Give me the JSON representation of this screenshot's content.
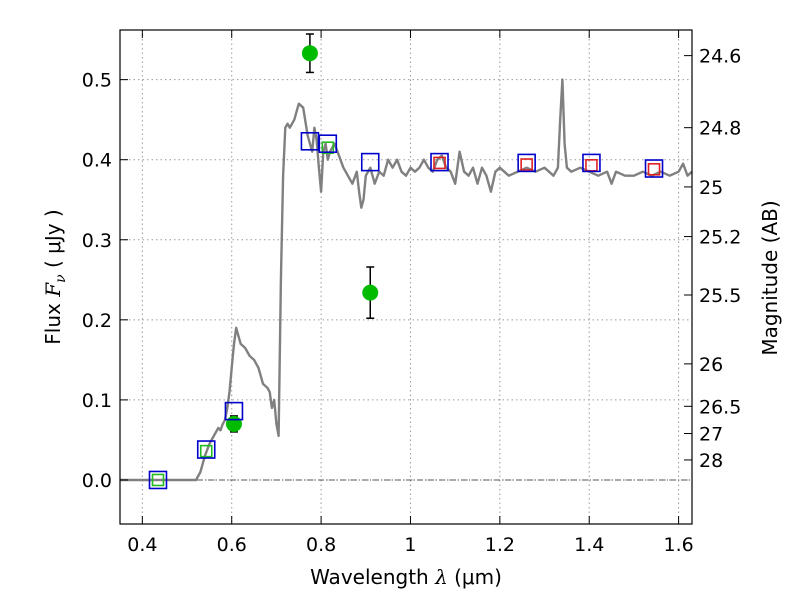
{
  "chart_data": {
    "type": "line",
    "xlabel": "Wavelength  λ (μm)",
    "ylabel": "Flux  F_ν  ( μJy )",
    "ylabel_parts": {
      "prefix": "Flux  ",
      "symbol": "F",
      "subscript": "ν",
      "suffix": "  ( μJy )"
    },
    "xlabel_parts": {
      "prefix": "Wavelength  ",
      "symbol": "λ",
      "suffix": " (μm)"
    },
    "ylabel_right": "Magnitude (AB)",
    "xlim": [
      0.35,
      1.63
    ],
    "ylim": [
      -0.055,
      0.562
    ],
    "grid": true,
    "x_ticks": [
      0.4,
      0.6,
      0.8,
      1.0,
      1.2,
      1.4,
      1.6
    ],
    "x_tick_labels": [
      "0.4",
      "0.6",
      "0.8",
      "1",
      "1.2",
      "1.4",
      "1.6"
    ],
    "y_ticks": [
      0.0,
      0.1,
      0.2,
      0.3,
      0.4,
      0.5
    ],
    "y_tick_labels": [
      "0.0",
      "0.1",
      "0.2",
      "0.3",
      "0.4",
      "0.5"
    ],
    "mag_ticks": [
      {
        "label": "24.6",
        "flux": 0.53
      },
      {
        "label": "24.8",
        "flux": 0.44
      },
      {
        "label": "25",
        "flux": 0.366
      },
      {
        "label": "25.2",
        "flux": 0.304
      },
      {
        "label": "25.5",
        "flux": 0.231
      },
      {
        "label": "26",
        "flux": 0.145
      },
      {
        "label": "26.5",
        "flux": 0.092
      },
      {
        "label": "27",
        "flux": 0.058
      },
      {
        "label": "28",
        "flux": 0.025
      }
    ],
    "zero_line": 0.0,
    "colors": {
      "spectrum": "#808080",
      "detections": "#00bb00",
      "errorbars": "#000000",
      "model_blue": "#0000cc",
      "model_green": "#22bb22",
      "model_red": "#dd2222",
      "grid": "#9a9a9a"
    },
    "series": [
      {
        "name": "template spectrum",
        "style": "line",
        "x": [
          0.35,
          0.4,
          0.45,
          0.5,
          0.52,
          0.53,
          0.54,
          0.55,
          0.56,
          0.565,
          0.57,
          0.575,
          0.58,
          0.585,
          0.59,
          0.595,
          0.6,
          0.605,
          0.61,
          0.615,
          0.62,
          0.63,
          0.64,
          0.65,
          0.66,
          0.67,
          0.68,
          0.685,
          0.69,
          0.695,
          0.7,
          0.705,
          0.71,
          0.715,
          0.72,
          0.725,
          0.73,
          0.74,
          0.75,
          0.76,
          0.77,
          0.78,
          0.785,
          0.79,
          0.795,
          0.8,
          0.805,
          0.81,
          0.815,
          0.82,
          0.83,
          0.84,
          0.85,
          0.86,
          0.87,
          0.88,
          0.885,
          0.89,
          0.895,
          0.9,
          0.91,
          0.92,
          0.93,
          0.94,
          0.95,
          0.96,
          0.97,
          0.98,
          0.99,
          1.0,
          1.01,
          1.02,
          1.03,
          1.04,
          1.05,
          1.06,
          1.07,
          1.08,
          1.09,
          1.1,
          1.11,
          1.12,
          1.13,
          1.14,
          1.15,
          1.16,
          1.17,
          1.18,
          1.19,
          1.2,
          1.22,
          1.24,
          1.26,
          1.28,
          1.3,
          1.32,
          1.33,
          1.335,
          1.34,
          1.345,
          1.35,
          1.36,
          1.38,
          1.4,
          1.42,
          1.44,
          1.45,
          1.46,
          1.48,
          1.5,
          1.52,
          1.54,
          1.56,
          1.58,
          1.6,
          1.61,
          1.62,
          1.63
        ],
        "y": [
          0.0,
          0.0,
          0.0,
          0.0,
          0.0,
          0.01,
          0.03,
          0.045,
          0.055,
          0.06,
          0.065,
          0.062,
          0.07,
          0.075,
          0.09,
          0.11,
          0.14,
          0.17,
          0.19,
          0.18,
          0.17,
          0.165,
          0.155,
          0.15,
          0.14,
          0.12,
          0.115,
          0.11,
          0.09,
          0.1,
          0.07,
          0.055,
          0.25,
          0.38,
          0.44,
          0.445,
          0.44,
          0.45,
          0.47,
          0.465,
          0.43,
          0.41,
          0.44,
          0.425,
          0.39,
          0.36,
          0.41,
          0.42,
          0.4,
          0.41,
          0.42,
          0.405,
          0.39,
          0.38,
          0.37,
          0.385,
          0.36,
          0.34,
          0.35,
          0.38,
          0.39,
          0.37,
          0.385,
          0.38,
          0.4,
          0.39,
          0.4,
          0.385,
          0.38,
          0.39,
          0.385,
          0.39,
          0.4,
          0.39,
          0.385,
          0.4,
          0.405,
          0.39,
          0.385,
          0.37,
          0.41,
          0.385,
          0.38,
          0.39,
          0.37,
          0.39,
          0.38,
          0.36,
          0.385,
          0.39,
          0.38,
          0.385,
          0.39,
          0.385,
          0.39,
          0.38,
          0.39,
          0.45,
          0.5,
          0.42,
          0.39,
          0.385,
          0.39,
          0.385,
          0.38,
          0.385,
          0.37,
          0.385,
          0.38,
          0.38,
          0.385,
          0.38,
          0.385,
          0.38,
          0.385,
          0.395,
          0.38,
          0.385
        ]
      },
      {
        "name": "observed photometry",
        "style": "points",
        "points": [
          {
            "x": 0.605,
            "y": 0.07,
            "err": 0.01
          },
          {
            "x": 0.775,
            "y": 0.533,
            "err": 0.024
          },
          {
            "x": 0.91,
            "y": 0.234,
            "err": 0.032
          }
        ]
      },
      {
        "name": "model fluxes (blue)",
        "style": "squares",
        "points": [
          {
            "x": 0.435,
            "y": 0.0
          },
          {
            "x": 0.543,
            "y": 0.038
          },
          {
            "x": 0.605,
            "y": 0.086
          },
          {
            "x": 0.775,
            "y": 0.423
          },
          {
            "x": 0.815,
            "y": 0.42
          },
          {
            "x": 0.91,
            "y": 0.397
          },
          {
            "x": 1.065,
            "y": 0.397
          },
          {
            "x": 1.26,
            "y": 0.396
          },
          {
            "x": 1.405,
            "y": 0.396
          },
          {
            "x": 1.545,
            "y": 0.389
          }
        ]
      },
      {
        "name": "model fluxes (green)",
        "style": "squares-small",
        "points": [
          {
            "x": 0.435,
            "y": 0.0
          },
          {
            "x": 0.543,
            "y": 0.036
          },
          {
            "x": 0.815,
            "y": 0.415
          }
        ]
      },
      {
        "name": "model fluxes (red)",
        "style": "squares-small",
        "points": [
          {
            "x": 1.065,
            "y": 0.396
          },
          {
            "x": 1.26,
            "y": 0.394
          },
          {
            "x": 1.405,
            "y": 0.393
          },
          {
            "x": 1.545,
            "y": 0.388
          }
        ]
      }
    ]
  }
}
